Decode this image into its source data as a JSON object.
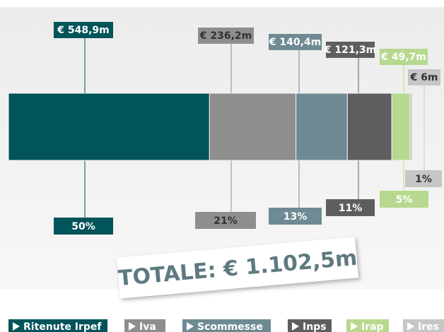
{
  "chart_data": {
    "type": "stacked-bar",
    "total_label": "TOTALE: € 1.102,5m",
    "categories": [
      "Ritenute Irpef",
      "Iva",
      "Scommesse",
      "Inps",
      "Irap",
      "Ires"
    ],
    "values": [
      548.9,
      236.2,
      140.4,
      121.3,
      49.7,
      6
    ],
    "value_labels": [
      "€ 548,9m",
      "€ 236,2m",
      "€ 140,4m",
      "€ 121,3m",
      "€ 49,7m",
      "€ 6m"
    ],
    "shares": [
      50,
      21,
      13,
      11,
      5,
      1
    ],
    "share_labels": [
      "50%",
      "21%",
      "13%",
      "11%",
      "5%",
      "1%"
    ],
    "colors": [
      "#00545a",
      "#8e8e8e",
      "#6e8a92",
      "#5e5e5e",
      "#b7d88f",
      "#c6c6c6"
    ]
  }
}
